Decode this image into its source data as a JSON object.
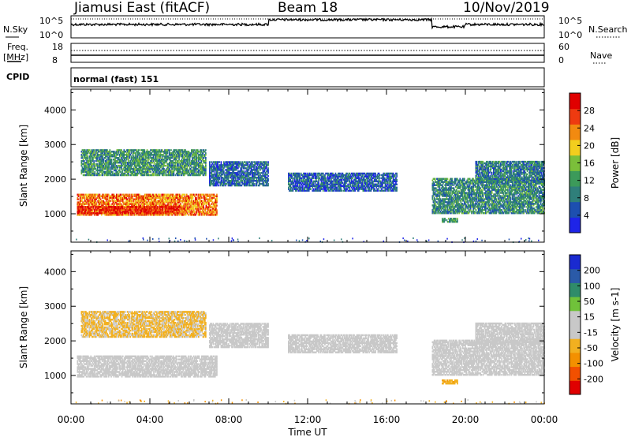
{
  "header": {
    "station": "Jiamusi East (fitACF)",
    "beam": "Beam 18",
    "date": "10/Nov/2019"
  },
  "status": {
    "nsky_label": "N.Sky",
    "nsearch_label": "N.Search",
    "freq_label": "Freq.",
    "freq_unit": "[MHz]",
    "nave_label": "Nave",
    "cpid_label": "CPID",
    "cpid_value": "normal (fast) 151",
    "noise_ticks_left": [
      "10^5",
      "10^0"
    ],
    "noise_ticks_right": [
      "10^5",
      "10^0"
    ],
    "freq_ticks": [
      "18",
      "8"
    ],
    "nave_ticks": [
      "60",
      "0"
    ]
  },
  "colors": {
    "power": [
      "#1e24e8",
      "#1d4fb0",
      "#2f7f7a",
      "#3c9a5a",
      "#7bbf3a",
      "#f2ce1e",
      "#f28a10",
      "#ee3a10",
      "#e00000"
    ],
    "velocity": [
      "#e00000",
      "#f25000",
      "#f39000",
      "#f2b020",
      "#c8c8c8",
      "#c8c8c8",
      "#70c23a",
      "#2f8c6a",
      "#2a5aa8",
      "#1a2ad0"
    ]
  },
  "chart_data": [
    {
      "type": "heatmap",
      "title": "",
      "xlabel": "Time UT",
      "ylabel": "Slant Range [km]",
      "xlim": [
        "00:00",
        "24:00"
      ],
      "ylim": [
        180,
        4600
      ],
      "x_ticks": [
        "00:00",
        "04:00",
        "08:00",
        "12:00",
        "16:00",
        "20:00",
        "00:00"
      ],
      "y_ticks": [
        1000,
        2000,
        3000,
        4000
      ],
      "colorbar": {
        "label": "Power [dB]",
        "range": [
          0,
          32
        ],
        "ticks": [
          4,
          8,
          12,
          16,
          20,
          24,
          28
        ]
      },
      "echo_regions": [
        {
          "t0": 0.3,
          "t1": 7.4,
          "r0": 950,
          "r1": 1550,
          "value": 24
        },
        {
          "t0": 0.3,
          "t1": 5.5,
          "r0": 1000,
          "r1": 1200,
          "value": 29
        },
        {
          "t0": 0.5,
          "t1": 6.8,
          "r0": 2100,
          "r1": 2850,
          "value": 11
        },
        {
          "t0": 7.0,
          "t1": 10.0,
          "r0": 1800,
          "r1": 2500,
          "value": 7
        },
        {
          "t0": 11.0,
          "t1": 16.5,
          "r0": 1650,
          "r1": 2150,
          "value": 6
        },
        {
          "t0": 18.3,
          "t1": 24.0,
          "r0": 1000,
          "r1": 2000,
          "value": 10
        },
        {
          "t0": 20.5,
          "t1": 24.0,
          "r0": 1900,
          "r1": 2500,
          "value": 9
        },
        {
          "t0": 18.8,
          "t1": 19.6,
          "r0": 750,
          "r1": 850,
          "value": 12
        }
      ]
    },
    {
      "type": "heatmap",
      "title": "",
      "xlabel": "Time UT",
      "ylabel": "Slant Range [km]",
      "xlim": [
        "00:00",
        "24:00"
      ],
      "ylim": [
        180,
        4600
      ],
      "x_ticks": [
        "00:00",
        "04:00",
        "08:00",
        "12:00",
        "16:00",
        "20:00",
        "00:00"
      ],
      "y_ticks": [
        1000,
        2000,
        3000,
        4000
      ],
      "colorbar": {
        "label": "Velocity [m s-1]",
        "range": [
          -250,
          250
        ],
        "ticks": [
          200,
          100,
          50,
          15,
          -15,
          -50,
          -100,
          -200
        ]
      },
      "echo_regions": [
        {
          "t0": 0.3,
          "t1": 7.4,
          "r0": 950,
          "r1": 1550,
          "value": 0
        },
        {
          "t0": 0.5,
          "t1": 6.8,
          "r0": 2100,
          "r1": 2850,
          "value": -60
        },
        {
          "t0": 7.0,
          "t1": 10.0,
          "r0": 1800,
          "r1": 2500,
          "value": 0
        },
        {
          "t0": 11.0,
          "t1": 16.5,
          "r0": 1650,
          "r1": 2150,
          "value": 0
        },
        {
          "t0": 18.3,
          "t1": 24.0,
          "r0": 1000,
          "r1": 2000,
          "value": 0
        },
        {
          "t0": 20.5,
          "t1": 24.0,
          "r0": 1900,
          "r1": 2500,
          "value": 0
        },
        {
          "t0": 18.8,
          "t1": 19.6,
          "r0": 750,
          "r1": 850,
          "value": -80
        }
      ]
    }
  ]
}
